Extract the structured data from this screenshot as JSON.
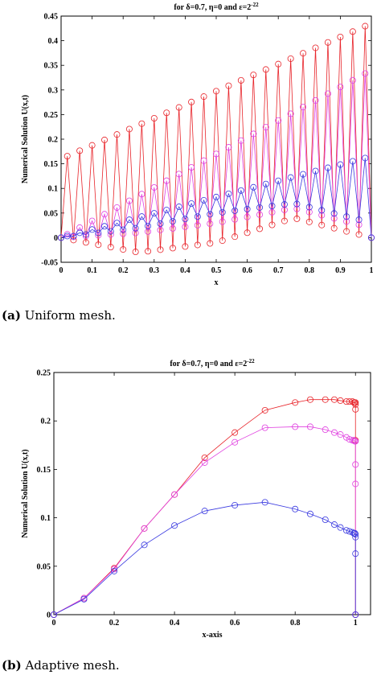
{
  "captions": [
    {
      "tag": "(a)",
      "text": "Uniform mesh."
    },
    {
      "tag": "(b)",
      "text": "Adaptive mesh."
    }
  ],
  "chart_data": [
    {
      "type": "line",
      "title_parts": {
        "prefix": "for δ=0.7, η=0 and ε=2",
        "exp": "-22"
      },
      "xlabel": "x",
      "ylabel": "Numerical Solution U(x,t)",
      "xlim": [
        0,
        1
      ],
      "ylim": [
        -0.05,
        0.45
      ],
      "xticks": [
        0,
        0.1,
        0.2,
        0.3,
        0.4,
        0.5,
        0.6,
        0.7,
        0.8,
        0.9,
        1
      ],
      "yticks": [
        -0.05,
        0,
        0.05,
        0.1,
        0.15,
        0.2,
        0.25,
        0.3,
        0.35,
        0.4,
        0.45
      ],
      "xtick_labels": [
        "0",
        "0.1",
        "0.2",
        "0.3",
        "0.4",
        "0.5",
        "0.6",
        "0.7",
        "0.8",
        "0.9",
        "1"
      ],
      "ytick_labels": [
        "-0.05",
        "0",
        "0.05",
        "0.1",
        "0.15",
        "0.2",
        "0.25",
        "0.3",
        "0.35",
        "0.4",
        "0.45"
      ],
      "grid": false,
      "marker": "circle",
      "series": [
        {
          "color": "#e8242a",
          "style": "zigzag",
          "n": 50,
          "peak": [
            0.16,
            0.435
          ],
          "trough": [
            0,
            -0.03,
            -0.01,
            0.04,
            0.0
          ]
        },
        {
          "color": "#e040e0",
          "style": "zigzag",
          "n": 50,
          "peak": [
            0.0,
            0.34
          ],
          "trough": [
            0,
            0.01,
            0.03,
            0.06,
            0.02
          ]
        },
        {
          "color": "#3a3ae0",
          "style": "zigzag",
          "n": 50,
          "peak": [
            0.0,
            0.165
          ],
          "trough": [
            0,
            0.02,
            0.05,
            0.07,
            0.03
          ]
        }
      ]
    },
    {
      "type": "line",
      "title_parts": {
        "prefix": "for δ=0.7, η=0 and ε=2",
        "exp": "-22"
      },
      "xlabel": "x-axis",
      "ylabel": "Numerical Solution U(x,t)",
      "xlim": [
        0,
        1.05
      ],
      "ylim": [
        0,
        0.25
      ],
      "xticks": [
        0,
        0.2,
        0.4,
        0.6,
        0.8,
        1
      ],
      "yticks": [
        0,
        0.05,
        0.1,
        0.15,
        0.2,
        0.25
      ],
      "xtick_labels": [
        "0",
        "0.2",
        "0.4",
        "0.6",
        "0.8",
        "1"
      ],
      "ytick_labels": [
        "0",
        "0.05",
        "0.1",
        "0.15",
        "0.2",
        "0.25"
      ],
      "grid": false,
      "marker": "circle",
      "series": [
        {
          "color": "#e8242a",
          "x": [
            0,
            0.1,
            0.2,
            0.3,
            0.4,
            0.5,
            0.6,
            0.7,
            0.8,
            0.85,
            0.9,
            0.93,
            0.95,
            0.97,
            0.98,
            0.99,
            0.995,
            0.998,
            1.0,
            1.0,
            1.0,
            1.0,
            1.0
          ],
          "y": [
            0,
            0.017,
            0.048,
            0.089,
            0.124,
            0.162,
            0.188,
            0.211,
            0.219,
            0.222,
            0.222,
            0.222,
            0.221,
            0.22,
            0.22,
            0.22,
            0.219,
            0.219,
            0.219,
            0.217,
            0.212,
            0.18,
            0
          ]
        },
        {
          "color": "#e040e0",
          "x": [
            0,
            0.1,
            0.2,
            0.3,
            0.4,
            0.5,
            0.6,
            0.7,
            0.8,
            0.85,
            0.9,
            0.93,
            0.95,
            0.97,
            0.98,
            0.99,
            0.995,
            0.998,
            1.0,
            1.0,
            1.0,
            1.0
          ],
          "y": [
            0,
            0.017,
            0.047,
            0.089,
            0.124,
            0.157,
            0.178,
            0.193,
            0.194,
            0.194,
            0.191,
            0.188,
            0.186,
            0.183,
            0.181,
            0.18,
            0.18,
            0.179,
            0.179,
            0.155,
            0.135,
            0
          ]
        },
        {
          "color": "#3a3ae0",
          "x": [
            0,
            0.1,
            0.2,
            0.3,
            0.4,
            0.5,
            0.6,
            0.7,
            0.8,
            0.85,
            0.9,
            0.93,
            0.95,
            0.97,
            0.98,
            0.99,
            0.995,
            0.998,
            1.0,
            1.0,
            1.0,
            1.0
          ],
          "y": [
            0,
            0.016,
            0.045,
            0.072,
            0.092,
            0.107,
            0.113,
            0.116,
            0.109,
            0.104,
            0.098,
            0.093,
            0.09,
            0.087,
            0.086,
            0.085,
            0.084,
            0.084,
            0.083,
            0.08,
            0.063,
            0
          ]
        }
      ]
    }
  ]
}
